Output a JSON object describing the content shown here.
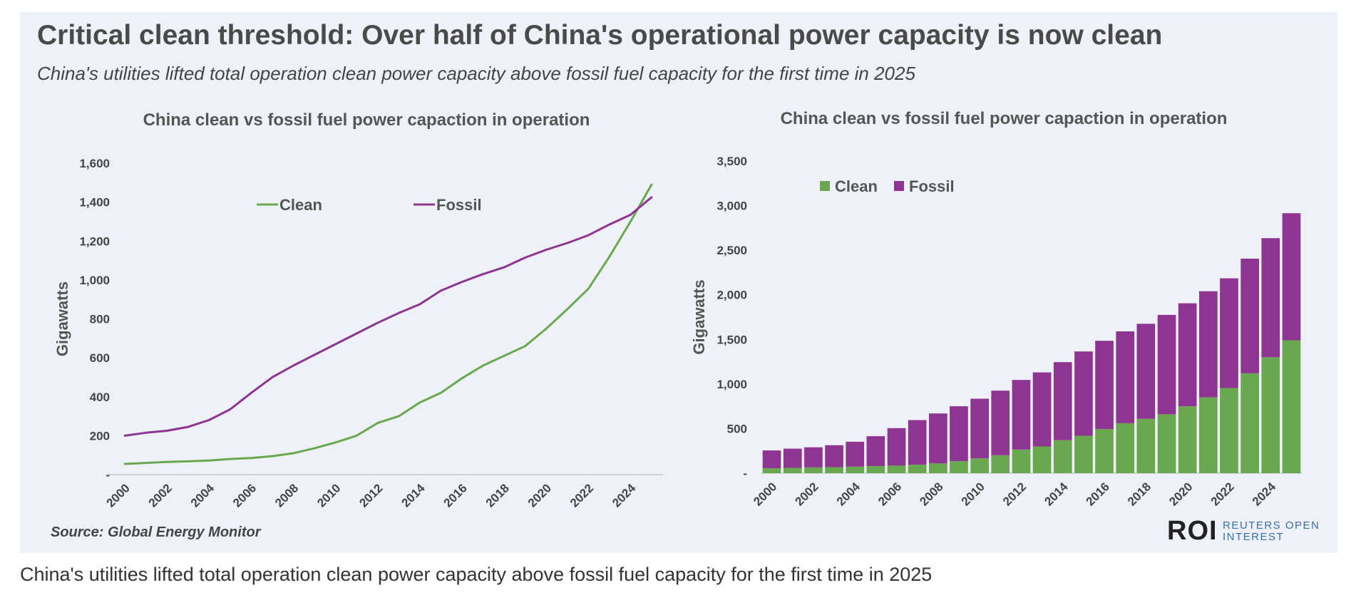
{
  "headline": "Critical clean threshold: Over half of China's operational power capacity is now clean",
  "subheadline": "China's utilities lifted total operation clean power capacity above fossil fuel capacity for the first time in 2025",
  "source": "Source:  Global Energy Monitor",
  "logo": {
    "mark": "ROI",
    "words": "REUTERS OPEN INTEREST"
  },
  "caption": "China's utilities lifted total operation clean power capacity above fossil fuel capacity for the first time in 2025",
  "colors": {
    "clean": "#6aa84f",
    "fossil": "#8e3592",
    "background": "#eef1f8"
  },
  "chart_data": [
    {
      "type": "line",
      "title": "China clean vs fossil fuel power capaction in operation",
      "xlabel": "",
      "ylabel": "Gigawatts",
      "x": [
        2000,
        2001,
        2002,
        2003,
        2004,
        2005,
        2006,
        2007,
        2008,
        2009,
        2010,
        2011,
        2012,
        2013,
        2014,
        2015,
        2016,
        2017,
        2018,
        2019,
        2020,
        2021,
        2022,
        2023,
        2024,
        2025
      ],
      "x_tick_labels": [
        "2000",
        "2002",
        "2004",
        "2006",
        "2008",
        "2010",
        "2012",
        "2014",
        "2016",
        "2018",
        "2020",
        "2022",
        "2024"
      ],
      "ylim": [
        0,
        1600
      ],
      "y_tick_labels": [
        "-",
        "200",
        "400",
        "600",
        "800",
        "1,000",
        "1,200",
        "1,400",
        "1,600"
      ],
      "legend_position": "top",
      "grid": false,
      "series": [
        {
          "name": "Clean",
          "values": [
            55,
            60,
            65,
            68,
            72,
            80,
            85,
            95,
            110,
            135,
            165,
            200,
            265,
            300,
            370,
            420,
            495,
            560,
            610,
            660,
            750,
            850,
            955,
            1120,
            1300,
            1490
          ]
        },
        {
          "name": "Fossil",
          "values": [
            200,
            215,
            225,
            245,
            280,
            335,
            420,
            500,
            560,
            615,
            670,
            725,
            780,
            830,
            875,
            945,
            990,
            1030,
            1065,
            1115,
            1155,
            1190,
            1230,
            1285,
            1335,
            1425
          ]
        }
      ]
    },
    {
      "type": "bar",
      "stacked": true,
      "title": "China clean vs fossil fuel power capaction in operation",
      "xlabel": "",
      "ylabel": "Gigawatts",
      "categories": [
        2000,
        2001,
        2002,
        2003,
        2004,
        2005,
        2006,
        2007,
        2008,
        2009,
        2010,
        2011,
        2012,
        2013,
        2014,
        2015,
        2016,
        2017,
        2018,
        2019,
        2020,
        2021,
        2022,
        2023,
        2024,
        2025
      ],
      "x_tick_labels": [
        "2000",
        "2002",
        "2004",
        "2006",
        "2008",
        "2010",
        "2012",
        "2014",
        "2016",
        "2018",
        "2020",
        "2022",
        "2024"
      ],
      "ylim": [
        0,
        3500
      ],
      "y_tick_labels": [
        "-",
        "500",
        "1,000",
        "1,500",
        "2,000",
        "2,500",
        "3,000",
        "3,500"
      ],
      "legend_position": "top-left",
      "grid": false,
      "series": [
        {
          "name": "Clean",
          "values": [
            55,
            60,
            65,
            68,
            72,
            80,
            85,
            95,
            110,
            135,
            165,
            200,
            265,
            300,
            370,
            420,
            495,
            560,
            610,
            660,
            750,
            850,
            955,
            1120,
            1300,
            1490
          ]
        },
        {
          "name": "Fossil",
          "values": [
            200,
            215,
            225,
            245,
            280,
            335,
            420,
            500,
            560,
            615,
            670,
            725,
            780,
            830,
            875,
            945,
            990,
            1030,
            1065,
            1115,
            1155,
            1190,
            1230,
            1285,
            1335,
            1425
          ]
        }
      ]
    }
  ]
}
